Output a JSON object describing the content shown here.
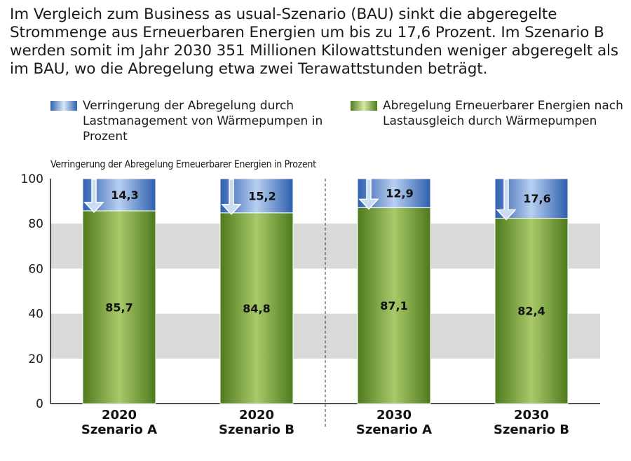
{
  "headline": "Im Vergleich zum Business as usual-Szenario (BAU) sinkt die abgeregelte Strommenge aus Erneuerbaren Energien um bis zu 17,6 Prozent. Im Szenario B werden somit im Jahr 2030 351 Millionen Kilowattstunden weniger abgeregelt als im BAU, wo die Abregelung etwa zwei Terawattstunden beträgt.",
  "legend": [
    {
      "label": "Verringerung der Abregelung durch Lastmanagement von Wärmepumpen in Prozent",
      "color": "#3a6fc0"
    },
    {
      "label": "Abregelung Erneuerbarer Energien nach Lastausgleich durch Wärmepumpen",
      "color": "#6e9a2a"
    }
  ],
  "colors": {
    "blue": "#3a6fc0",
    "green": "#6e9a2a",
    "band_gray": "#d9d9d9"
  },
  "chart_data": {
    "type": "bar",
    "stacked": true,
    "title": "Verringerung der Abregelung Erneuerbarer Energien in Prozent",
    "categories": [
      {
        "year": "2020",
        "scenario": "Szenario A"
      },
      {
        "year": "2020",
        "scenario": "Szenario B"
      },
      {
        "year": "2030",
        "scenario": "Szenario A"
      },
      {
        "year": "2030",
        "scenario": "Szenario B"
      }
    ],
    "series": [
      {
        "name": "Abregelung Erneuerbarer Energien nach Lastausgleich durch Wärmepumpen",
        "values": [
          85.7,
          84.8,
          87.1,
          82.4
        ],
        "labels": [
          "85,7",
          "84,8",
          "87,1",
          "82,4"
        ]
      },
      {
        "name": "Verringerung der Abregelung durch Lastmanagement von Wärmepumpen in Prozent",
        "values": [
          14.3,
          15.2,
          12.9,
          17.6
        ],
        "labels": [
          "14,3",
          "15,2",
          "12,9",
          "17,6"
        ]
      }
    ],
    "ylim": [
      0,
      100
    ],
    "yticks": [
      0,
      20,
      40,
      60,
      80,
      100
    ],
    "background_bands": "alternating gray",
    "divider_after_category": 1
  }
}
